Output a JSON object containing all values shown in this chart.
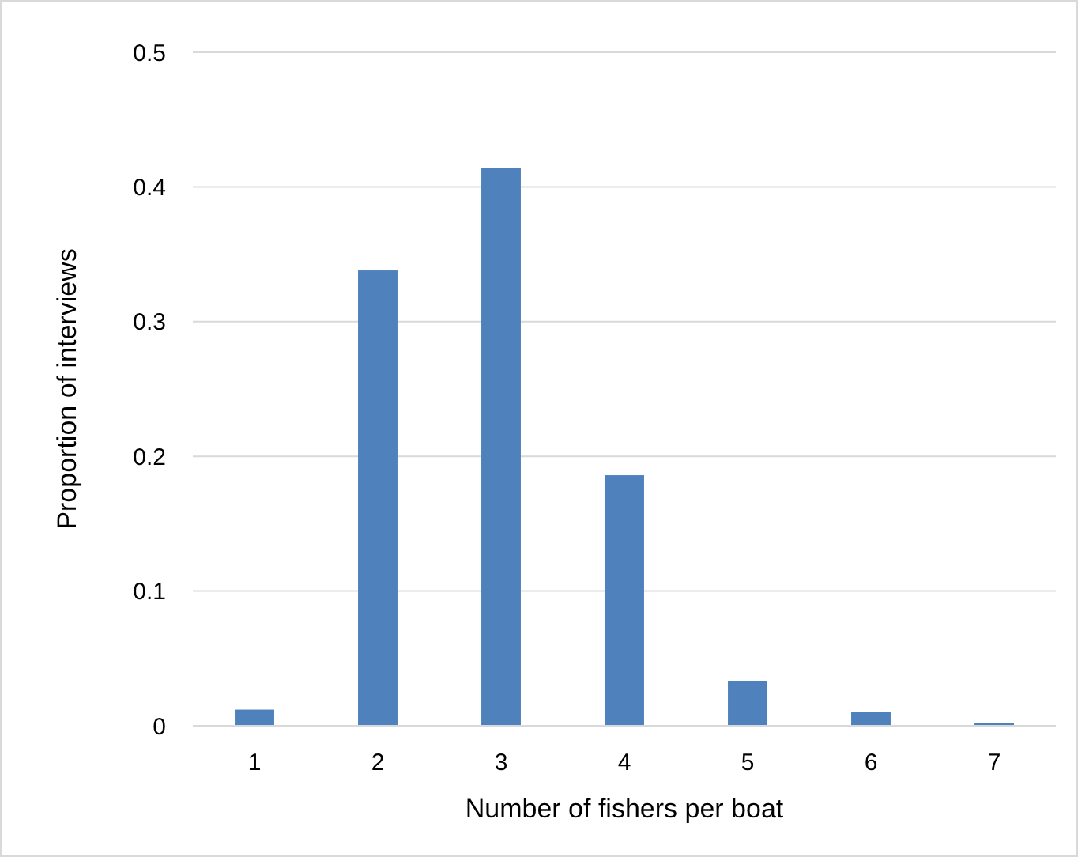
{
  "chart_data": {
    "type": "bar",
    "xlabel": "Number of fishers per boat",
    "ylabel": "Proportion of interviews",
    "categories": [
      "1",
      "2",
      "3",
      "4",
      "5",
      "6",
      "7"
    ],
    "values": [
      0.012,
      0.338,
      0.414,
      0.186,
      0.033,
      0.01,
      0.002
    ],
    "color": "#4f81bd",
    "ylim": [
      0,
      0.5
    ],
    "yticks": [
      0,
      0.1,
      0.2,
      0.3,
      0.4,
      0.5
    ],
    "grid": "y"
  }
}
